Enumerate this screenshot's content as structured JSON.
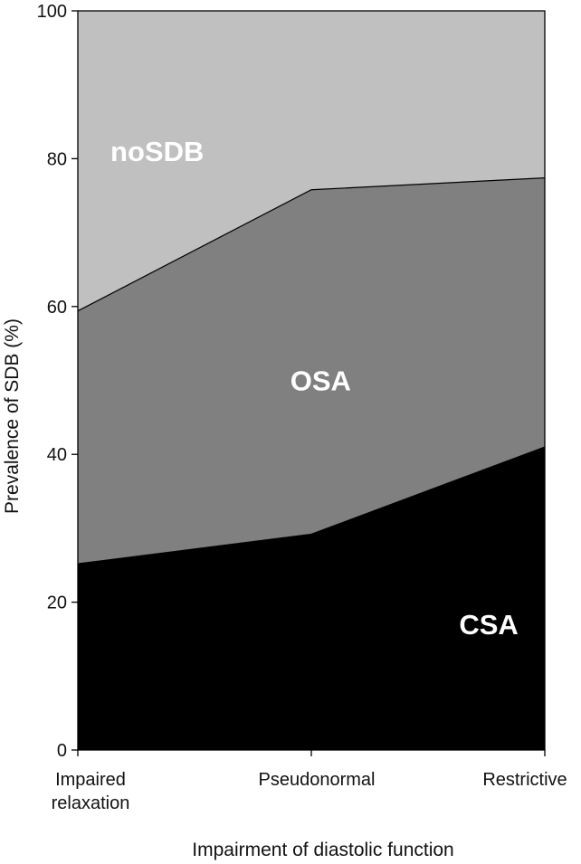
{
  "chart_data": {
    "type": "area",
    "stacked": true,
    "categories": [
      [
        "Impaired",
        "relaxation"
      ],
      [
        "Pseudonormal"
      ],
      [
        "Restrictive"
      ]
    ],
    "series": [
      {
        "name": "CSA",
        "values": [
          25.2,
          29.2,
          41.0
        ],
        "color": "#000000",
        "label_color": "#ffffff"
      },
      {
        "name": "OSA",
        "values": [
          34.2,
          46.6,
          36.4
        ],
        "color": "#808080",
        "label_color": "#ffffff"
      },
      {
        "name": "noSDB",
        "values": [
          40.6,
          24.2,
          22.6
        ],
        "color": "#c0c0c0",
        "label_color": "#ffffff"
      }
    ],
    "ylabel": "Prevalence of SDB (%)",
    "xlabel": "Impairment of diastolic function",
    "ylim": [
      0,
      100
    ],
    "yticks": [
      0,
      20,
      40,
      60,
      80,
      100
    ],
    "grid": false,
    "legend": "none",
    "axis_color": "#000000"
  }
}
